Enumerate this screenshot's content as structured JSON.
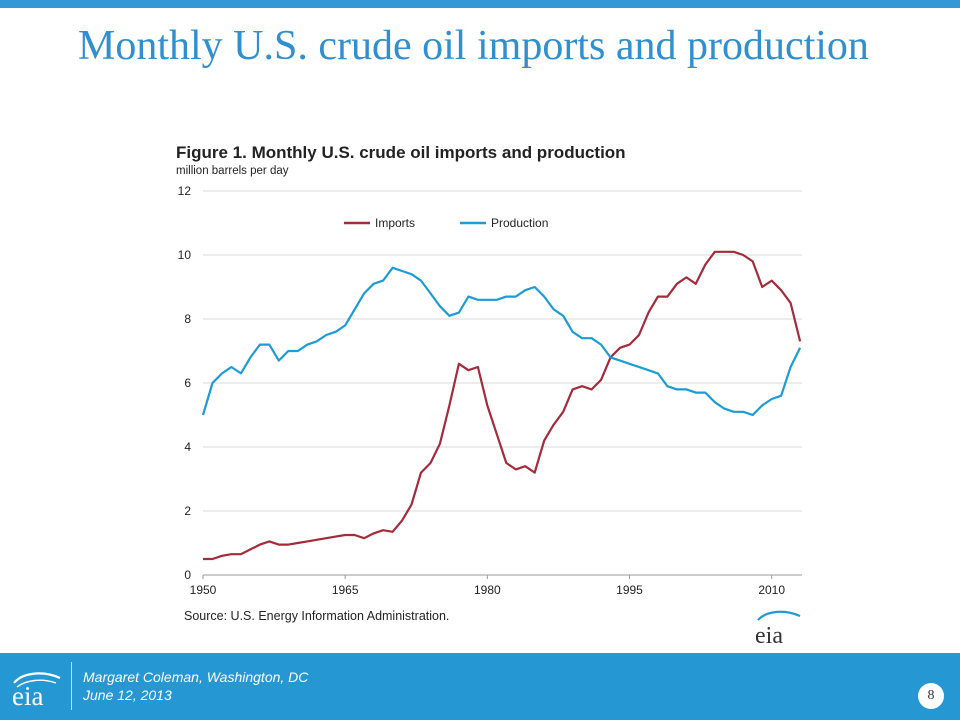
{
  "slide": {
    "title": "Monthly U.S. crude oil imports and production",
    "page_number": "8"
  },
  "footer": {
    "logo_text": "eia",
    "author": "Margaret Coleman, Washington, DC",
    "date": "June 12, 2013"
  },
  "chart_logo_text": "eia",
  "colors": {
    "accent": "#2597d3",
    "title": "#2f8fcf",
    "imports": "#a52a3a",
    "production": "#1c9bd6"
  },
  "chart_data": {
    "type": "line",
    "title": "Figure 1. Monthly U.S. crude oil imports and production",
    "ylabel": "million barrels per day",
    "xlabel": "",
    "source": "Source: U.S. Energy Information Administration.",
    "xlim": [
      1950,
      2013.2
    ],
    "ylim": [
      0,
      12
    ],
    "x_ticks": [
      "1950",
      "1965",
      "1980",
      "1995",
      "2010"
    ],
    "y_ticks": [
      "0",
      "2",
      "4",
      "6",
      "8",
      "10",
      "12"
    ],
    "grid": true,
    "legend_position": "top-center",
    "series": [
      {
        "name": "Imports",
        "color": "#a52a3a",
        "x": [
          1950,
          1951,
          1952,
          1953,
          1954,
          1955,
          1956,
          1957,
          1958,
          1959,
          1960,
          1961,
          1962,
          1963,
          1964,
          1965,
          1966,
          1967,
          1968,
          1969,
          1970,
          1971,
          1972,
          1973,
          1974,
          1975,
          1976,
          1977,
          1978,
          1979,
          1980,
          1981,
          1982,
          1983,
          1984,
          1985,
          1986,
          1987,
          1988,
          1989,
          1990,
          1991,
          1992,
          1993,
          1994,
          1995,
          1996,
          1997,
          1998,
          1999,
          2000,
          2001,
          2002,
          2003,
          2004,
          2005,
          2006,
          2007,
          2008,
          2009,
          2010,
          2011,
          2012,
          2013
        ],
        "y": [
          0.5,
          0.5,
          0.6,
          0.65,
          0.65,
          0.8,
          0.95,
          1.05,
          0.95,
          0.95,
          1.0,
          1.05,
          1.1,
          1.15,
          1.2,
          1.25,
          1.25,
          1.15,
          1.3,
          1.4,
          1.35,
          1.7,
          2.2,
          3.2,
          3.5,
          4.1,
          5.3,
          6.6,
          6.4,
          6.5,
          5.3,
          4.4,
          3.5,
          3.3,
          3.4,
          3.2,
          4.2,
          4.7,
          5.1,
          5.8,
          5.9,
          5.8,
          6.1,
          6.8,
          7.1,
          7.2,
          7.5,
          8.2,
          8.7,
          8.7,
          9.1,
          9.3,
          9.1,
          9.7,
          10.1,
          10.1,
          10.1,
          10.0,
          9.8,
          9.0,
          9.2,
          8.9,
          8.5,
          7.3
        ]
      },
      {
        "name": "Production",
        "color": "#1c9bd6",
        "x": [
          1950,
          1951,
          1952,
          1953,
          1954,
          1955,
          1956,
          1957,
          1958,
          1959,
          1960,
          1961,
          1962,
          1963,
          1964,
          1965,
          1966,
          1967,
          1968,
          1969,
          1970,
          1971,
          1972,
          1973,
          1974,
          1975,
          1976,
          1977,
          1978,
          1979,
          1980,
          1981,
          1982,
          1983,
          1984,
          1985,
          1986,
          1987,
          1988,
          1989,
          1990,
          1991,
          1992,
          1993,
          1994,
          1995,
          1996,
          1997,
          1998,
          1999,
          2000,
          2001,
          2002,
          2003,
          2004,
          2005,
          2006,
          2007,
          2008,
          2009,
          2010,
          2011,
          2012,
          2013
        ],
        "y": [
          5.0,
          6.0,
          6.3,
          6.5,
          6.3,
          6.8,
          7.2,
          7.2,
          6.7,
          7.0,
          7.0,
          7.2,
          7.3,
          7.5,
          7.6,
          7.8,
          8.3,
          8.8,
          9.1,
          9.2,
          9.6,
          9.5,
          9.4,
          9.2,
          8.8,
          8.4,
          8.1,
          8.2,
          8.7,
          8.6,
          8.6,
          8.6,
          8.7,
          8.7,
          8.9,
          9.0,
          8.7,
          8.3,
          8.1,
          7.6,
          7.4,
          7.4,
          7.2,
          6.8,
          6.7,
          6.6,
          6.5,
          6.4,
          6.3,
          5.9,
          5.8,
          5.8,
          5.7,
          5.7,
          5.4,
          5.2,
          5.1,
          5.1,
          5.0,
          5.3,
          5.5,
          5.6,
          6.5,
          7.1
        ]
      }
    ]
  }
}
